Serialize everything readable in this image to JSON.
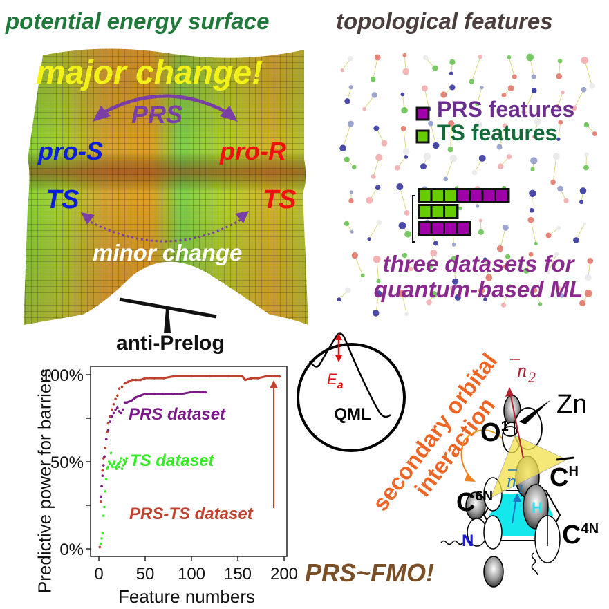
{
  "titles": {
    "left": "potential energy surface",
    "right": "topological features"
  },
  "pes": {
    "major_change": "major change!",
    "prs": "PRS",
    "pro_s": "pro-S",
    "pro_r": "pro-R",
    "ts_left": "TS",
    "ts_right": "TS",
    "minor_change": "minor change",
    "balance_label": "anti-Prelog",
    "colors": {
      "pro_s": "#0a1fd8",
      "pro_r": "#f01010",
      "prs_arrow": "#7a3fa5",
      "major": "#f2f21a"
    }
  },
  "topology": {
    "legend": [
      {
        "label": "PRS features",
        "color": "#a000a8"
      },
      {
        "label": "TS features",
        "color": "#66cc00"
      }
    ],
    "datasets": [
      {
        "ts_blocks": 3,
        "prs_blocks": 4
      },
      {
        "ts_blocks": 3,
        "prs_blocks": 0
      },
      {
        "ts_blocks": 0,
        "prs_blocks": 4
      }
    ],
    "caption_line1": "three datasets for",
    "caption_line2": "quantum-based ML"
  },
  "chart_data": {
    "type": "scatter",
    "title": "",
    "xlabel": "Feature numbers",
    "ylabel": "Predictive power for barriers",
    "xlim": [
      0,
      200
    ],
    "ylim": [
      0,
      100
    ],
    "x_ticks": [
      "0",
      "50",
      "100",
      "150",
      "200"
    ],
    "y_ticks": [
      "0%",
      "50%",
      "100%"
    ],
    "grid": false,
    "series": [
      {
        "name": "PRS-TS dataset",
        "color": "#c0412e",
        "x": [
          1,
          2,
          3,
          4,
          5,
          6,
          7,
          8,
          9,
          10,
          12,
          14,
          16,
          18,
          20,
          22,
          25,
          28,
          32,
          36,
          40,
          45,
          50,
          60,
          70,
          80,
          100,
          120,
          140,
          155,
          158,
          165,
          172,
          180,
          190,
          195
        ],
        "y": [
          1,
          27,
          36,
          45,
          52,
          53,
          58,
          63,
          67,
          72,
          76,
          80,
          83,
          86,
          88,
          92,
          93,
          95,
          96,
          97,
          97,
          97,
          98,
          98,
          98,
          99,
          99,
          99,
          99,
          99,
          97,
          98,
          98,
          99,
          99,
          99
        ]
      },
      {
        "name": "PRS dataset",
        "color": "#7b1a88",
        "x": [
          2,
          3,
          4,
          5,
          6,
          8,
          10,
          12,
          14,
          16,
          18,
          20,
          22,
          24,
          26,
          28,
          30,
          35,
          40,
          45,
          50,
          60,
          70,
          80,
          90,
          100,
          110,
          115
        ],
        "y": [
          30,
          36,
          42,
          48,
          53,
          63,
          68,
          73,
          76,
          78,
          80,
          81,
          79,
          78,
          80,
          84,
          84,
          85,
          87,
          88,
          89,
          89,
          89,
          89,
          89,
          90,
          90,
          90
        ]
      },
      {
        "name": "TS dataset",
        "color": "#33ee22",
        "x": [
          2,
          3,
          4,
          5,
          6,
          7,
          8,
          9,
          10,
          11,
          12,
          13,
          14,
          15,
          16,
          17,
          18,
          19,
          20,
          21,
          22,
          23,
          24,
          25,
          26,
          27,
          28,
          29,
          30
        ],
        "y": [
          3,
          6,
          9,
          19,
          24,
          33,
          40,
          46,
          47,
          50,
          49,
          55,
          48,
          47,
          49,
          50,
          47,
          46,
          48,
          49,
          47,
          50,
          52,
          46,
          48,
          51,
          49,
          50,
          52
        ]
      }
    ],
    "annotations": [
      {
        "text": "PRS dataset",
        "color": "#7b1a88"
      },
      {
        "text": "TS dataset",
        "color": "#33ee22"
      },
      {
        "text": "PRS-TS dataset",
        "color": "#c0412e"
      }
    ]
  },
  "qml": {
    "label": "QML",
    "ea_label": "E",
    "ea_sub": "a"
  },
  "orbital": {
    "secondary_line1": "secondary orbital",
    "secondary_line2": "interaction",
    "prs_fmo": "PRS~FMO!",
    "atoms": {
      "zn": "Zn",
      "o": "O",
      "o_sup": "1",
      "ch": "C",
      "ch_sup": "H",
      "c6n": "C",
      "c6n_sup": "6N",
      "c4n": "C",
      "c4n_sup": "4N",
      "n": "N",
      "h": "H"
    },
    "vectors": {
      "n2": "n",
      "n2_sub": "2",
      "n1": "n",
      "n1_sub": "1"
    }
  }
}
